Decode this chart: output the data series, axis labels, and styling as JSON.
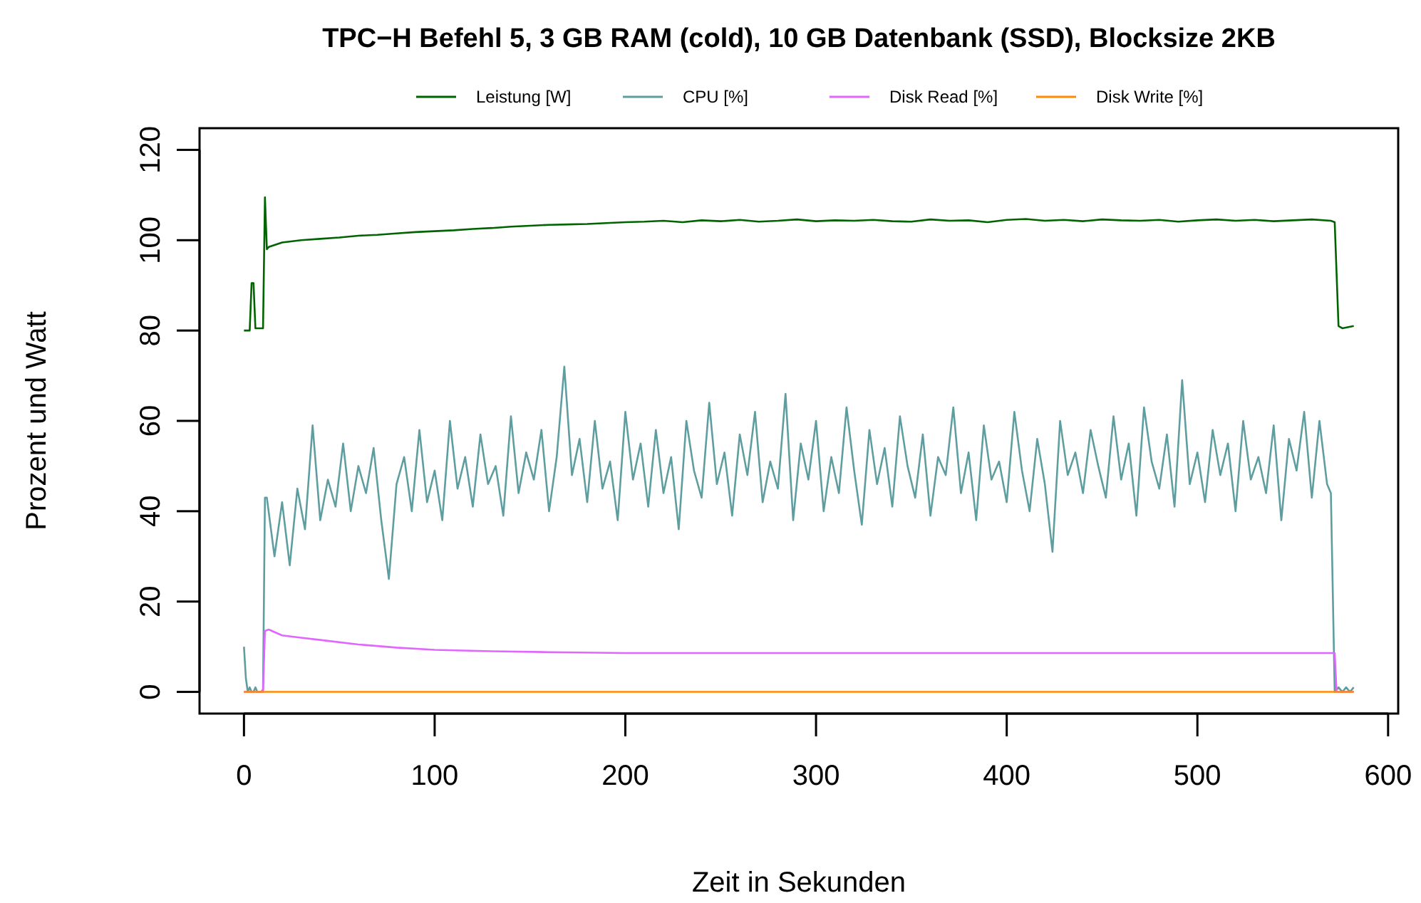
{
  "chart_data": {
    "type": "line",
    "title": "TPC−H Befehl 5, 3 GB RAM (cold), 10 GB Datenbank (SSD), Blocksize 2KB",
    "xlabel": "Zeit in Sekunden",
    "ylabel": "Prozent und Watt",
    "xlim": [
      -23.3,
      605.3
    ],
    "xticks": [
      0,
      100,
      200,
      300,
      400,
      500,
      600
    ],
    "ylim": [
      -4.8,
      124.8
    ],
    "yticks": [
      0,
      20,
      40,
      60,
      80,
      100,
      120
    ],
    "grid": false,
    "legend": "top",
    "marker": "none",
    "line_style": "solid",
    "series": [
      {
        "name": "Leistung [W]",
        "color": "#006400",
        "x": [
          0,
          3,
          4,
          5,
          6,
          10,
          11,
          12,
          13,
          20,
          30,
          40,
          50,
          60,
          70,
          80,
          90,
          100,
          110,
          120,
          130,
          140,
          150,
          160,
          170,
          180,
          190,
          200,
          210,
          220,
          230,
          240,
          250,
          260,
          270,
          280,
          290,
          300,
          310,
          320,
          330,
          340,
          350,
          360,
          370,
          380,
          390,
          400,
          410,
          420,
          430,
          440,
          450,
          460,
          470,
          480,
          490,
          500,
          510,
          520,
          530,
          540,
          550,
          560,
          570,
          572,
          574,
          576,
          582
        ],
        "values": [
          80,
          80,
          90.5,
          90.5,
          80.5,
          80.5,
          109.5,
          98,
          98.5,
          99.5,
          100,
          100.3,
          100.6,
          101,
          101.2,
          101.5,
          101.8,
          102,
          102.2,
          102.5,
          102.7,
          103,
          103.2,
          103.4,
          103.5,
          103.6,
          103.8,
          104,
          104.1,
          104.3,
          104,
          104.4,
          104.2,
          104.5,
          104.1,
          104.3,
          104.6,
          104.2,
          104.4,
          104.3,
          104.5,
          104.2,
          104.1,
          104.6,
          104.3,
          104.4,
          104,
          104.5,
          104.7,
          104.3,
          104.5,
          104.2,
          104.6,
          104.4,
          104.3,
          104.5,
          104.1,
          104.4,
          104.6,
          104.3,
          104.5,
          104.2,
          104.4,
          104.6,
          104.3,
          104,
          81,
          80.5,
          81
        ]
      },
      {
        "name": "CPU [%]",
        "color": "#5f9ea0",
        "x": [
          0,
          1,
          2,
          3,
          4,
          5,
          6,
          7,
          9,
          10,
          11,
          12,
          16,
          20,
          24,
          28,
          32,
          36,
          40,
          44,
          48,
          52,
          56,
          60,
          64,
          68,
          72,
          76,
          80,
          84,
          88,
          92,
          96,
          100,
          104,
          108,
          112,
          116,
          120,
          124,
          128,
          132,
          136,
          140,
          144,
          148,
          152,
          156,
          160,
          164,
          168,
          172,
          176,
          180,
          184,
          188,
          192,
          196,
          200,
          204,
          208,
          212,
          216,
          220,
          224,
          228,
          232,
          236,
          240,
          244,
          248,
          252,
          256,
          260,
          264,
          268,
          272,
          276,
          280,
          284,
          288,
          292,
          296,
          300,
          304,
          308,
          312,
          316,
          320,
          324,
          328,
          332,
          336,
          340,
          344,
          348,
          352,
          356,
          360,
          364,
          368,
          372,
          376,
          380,
          384,
          388,
          392,
          396,
          400,
          404,
          408,
          412,
          416,
          420,
          424,
          428,
          432,
          436,
          440,
          444,
          448,
          452,
          456,
          460,
          464,
          468,
          472,
          476,
          480,
          484,
          488,
          492,
          496,
          500,
          504,
          508,
          512,
          516,
          520,
          524,
          528,
          532,
          536,
          540,
          544,
          548,
          552,
          556,
          560,
          564,
          568,
          570,
          572,
          574,
          576,
          578,
          580,
          582
        ],
        "values": [
          10,
          3,
          0,
          1,
          0,
          0,
          1,
          0,
          0,
          0.5,
          43,
          43,
          30,
          42,
          28,
          45,
          36,
          59,
          38,
          47,
          41,
          55,
          40,
          50,
          44,
          54,
          38,
          25,
          46,
          52,
          40,
          58,
          42,
          49,
          38,
          60,
          45,
          52,
          41,
          57,
          46,
          50,
          39,
          61,
          44,
          53,
          47,
          58,
          40,
          52,
          72,
          48,
          56,
          42,
          60,
          45,
          51,
          38,
          62,
          47,
          55,
          41,
          58,
          44,
          52,
          36,
          60,
          49,
          43,
          64,
          46,
          53,
          39,
          57,
          48,
          62,
          42,
          51,
          45,
          66,
          38,
          55,
          47,
          60,
          40,
          52,
          44,
          63,
          49,
          37,
          58,
          46,
          54,
          41,
          61,
          50,
          43,
          57,
          39,
          52,
          48,
          63,
          44,
          53,
          38,
          59,
          47,
          51,
          42,
          62,
          49,
          40,
          56,
          46,
          31,
          60,
          48,
          53,
          44,
          58,
          50,
          43,
          61,
          47,
          55,
          39,
          63,
          51,
          45,
          57,
          41,
          69,
          46,
          53,
          42,
          58,
          48,
          55,
          40,
          60,
          47,
          52,
          44,
          59,
          38,
          56,
          49,
          62,
          43,
          60,
          46,
          44,
          0,
          1,
          0,
          1,
          0,
          1
        ]
      },
      {
        "name": "Disk Read [%]",
        "color": "#e066ff",
        "x": [
          0,
          10,
          11,
          13,
          20,
          30,
          40,
          60,
          80,
          100,
          130,
          160,
          200,
          300,
          400,
          500,
          572,
          573,
          582
        ],
        "values": [
          0,
          0,
          13.5,
          13.8,
          12.5,
          12,
          11.5,
          10.5,
          9.8,
          9.3,
          9,
          8.8,
          8.6,
          8.6,
          8.6,
          8.6,
          8.6,
          0,
          0
        ]
      },
      {
        "name": "Disk Write [%]",
        "color": "#ff8c00",
        "x": [
          0,
          582
        ],
        "values": [
          0,
          0
        ]
      }
    ]
  }
}
